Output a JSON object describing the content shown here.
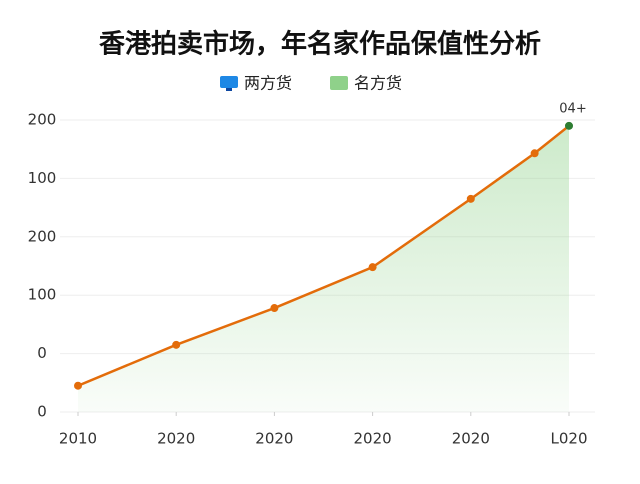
{
  "chart_data": {
    "type": "area",
    "title": "香港拍卖市场，年名家作品保值性分析",
    "legend": [
      {
        "name": "两方货",
        "color": "#1e88e5"
      },
      {
        "name": "名方货",
        "color": "#8fd18a"
      }
    ],
    "x": [
      0,
      1,
      2,
      3,
      4,
      4.65,
      5
    ],
    "series": [
      {
        "name": "名方货",
        "color": "#e36c0a",
        "area_color": "#8fd18a",
        "values": [
          45,
          115,
          178,
          248,
          365,
          443,
          490
        ]
      }
    ],
    "annotation": "04+",
    "last_point_color": "#2e7d32",
    "xlim": [
      0,
      5
    ],
    "xticks": [
      {
        "value": 0,
        "label": "2010"
      },
      {
        "value": 1,
        "label": "2020"
      },
      {
        "value": 2,
        "label": "2020"
      },
      {
        "value": 3,
        "label": "2020"
      },
      {
        "value": 4,
        "label": "2020"
      },
      {
        "value": 5,
        "label": "L020"
      }
    ],
    "ylim": [
      0,
      500
    ],
    "yticks": [
      0,
      {
        "value": 100,
        "label": "0"
      },
      {
        "value": 200,
        "label": "100"
      },
      {
        "value": 300,
        "label": "200"
      },
      {
        "value": 400,
        "label": "100"
      },
      {
        "value": 500,
        "label": "200"
      }
    ],
    "grid": true
  }
}
